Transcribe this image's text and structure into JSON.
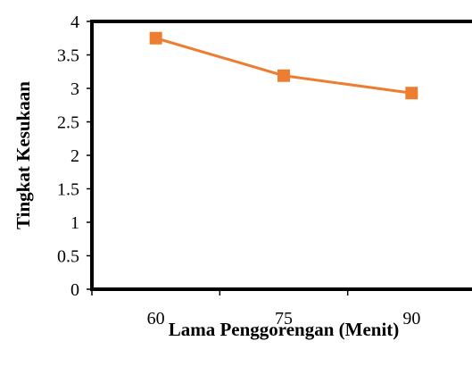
{
  "chart_data": {
    "type": "line",
    "xlabel": "Lama Penggorengan (Menit)",
    "ylabel": "Tingkat Kesukaan",
    "categories": [
      "60",
      "75",
      "90"
    ],
    "series": [
      {
        "values": [
          3.75,
          3.19,
          2.93
        ]
      }
    ],
    "y_ticks": [
      "0",
      "0.5",
      "1",
      "1.5",
      "2",
      "2.5",
      "3",
      "3.5",
      "4"
    ],
    "ylim": [
      0,
      4
    ],
    "grid": false,
    "legend": "none",
    "series_color": "#ED7D31",
    "marker": "square"
  }
}
